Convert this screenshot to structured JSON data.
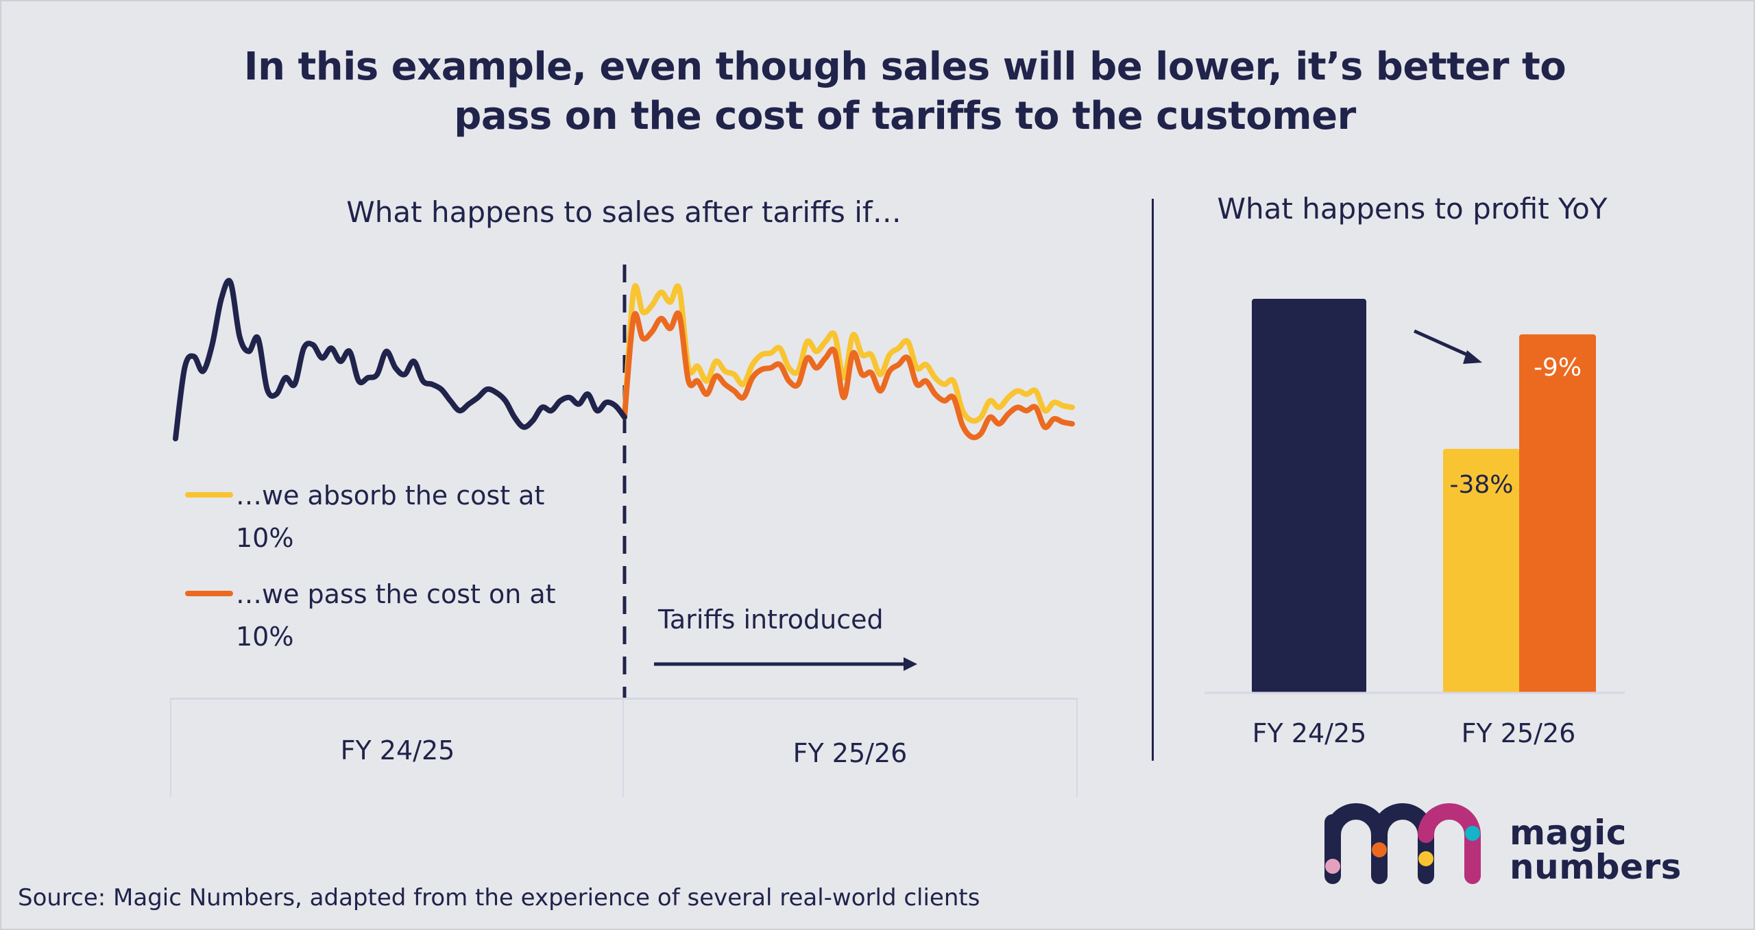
{
  "slide": {
    "title": "In this example, even though sales will be lower, it’s better to pass on the cost of tariffs to the customer",
    "source": "Source: Magic Numbers, adapted from the experience of several real-world clients",
    "logo": {
      "line1": "magic",
      "line2": "numbers",
      "icon": "mn-logo-icon"
    }
  },
  "colors": {
    "navy": "#20234a",
    "yellow": "#f8c431",
    "orange": "#eb6a1f",
    "magenta": "#b8307a",
    "teal": "#12b5c9",
    "pink": "#e3a1bd",
    "background": "#e6e7eb",
    "gridline": "#d6d6e6"
  },
  "chart_data": [
    {
      "type": "line",
      "title": "What happens to sales after tariffs if…",
      "xlabel": "",
      "ylabel": "",
      "grid": false,
      "legend_position": "bottom-left",
      "y_units": "relative sales index (illustrative, no axis shown)",
      "ylim": [
        0,
        100
      ],
      "annotation": {
        "text": "Tariffs introduced",
        "marker": "dashed vertical line at start of FY 25/26",
        "arrow": "right"
      },
      "periods": [
        "FY 24/25",
        "FY 25/26"
      ],
      "series": [
        {
          "name": "Sales FY 24/25",
          "color": "#20234a",
          "period": "FY 24/25",
          "values": [
            5,
            48,
            55,
            46,
            62,
            90,
            100,
            67,
            58,
            66,
            35,
            32,
            42,
            38,
            60,
            62,
            54,
            60,
            52,
            58,
            40,
            42,
            44,
            58,
            48,
            44,
            52,
            40,
            38,
            35,
            28,
            22,
            26,
            30,
            35,
            33,
            28,
            18,
            12,
            16,
            24,
            22,
            28,
            30,
            26,
            32,
            22,
            27,
            25,
            18
          ]
        },
        {
          "name": "…we absorb the cost at 10%",
          "color": "#f8c431",
          "period": "FY 25/26",
          "values": [
            18,
            95,
            82,
            86,
            94,
            88,
            96,
            48,
            49,
            40,
            52,
            46,
            44,
            38,
            50,
            56,
            57,
            60,
            48,
            46,
            64,
            58,
            64,
            68,
            42,
            68,
            56,
            56,
            44,
            56,
            60,
            64,
            48,
            50,
            42,
            38,
            40,
            22,
            16,
            18,
            28,
            24,
            30,
            34,
            32,
            34,
            22,
            27,
            25,
            24
          ]
        },
        {
          "name": "…we pass the cost on at 10%",
          "color": "#eb6a1f",
          "period": "FY 25/26",
          "values": [
            18,
            79,
            66,
            70,
            78,
            72,
            80,
            40,
            40,
            32,
            43,
            38,
            34,
            30,
            42,
            47,
            48,
            50,
            40,
            38,
            54,
            48,
            54,
            58,
            30,
            57,
            44,
            45,
            34,
            46,
            50,
            54,
            38,
            40,
            32,
            28,
            30,
            13,
            6,
            8,
            18,
            14,
            20,
            24,
            22,
            24,
            12,
            17,
            15,
            14
          ]
        }
      ]
    },
    {
      "type": "bar",
      "title": "What happens to profit YoY",
      "categories": [
        "FY 24/25",
        "FY 25/26"
      ],
      "xlabel": "",
      "ylabel": "",
      "grid": false,
      "y_units": "profit index (FY 24/25 = 100)",
      "ylim": [
        0,
        100
      ],
      "series": [
        {
          "name": "Baseline",
          "category": "FY 24/25",
          "value": 100,
          "color": "#20234a",
          "label": ""
        },
        {
          "name": "…we absorb the cost at 10%",
          "category": "FY 25/26",
          "value": 62,
          "color": "#f8c431",
          "label": "-38%"
        },
        {
          "name": "…we pass the cost on at 10%",
          "category": "FY 25/26",
          "value": 91,
          "color": "#eb6a1f",
          "label": "-9%"
        }
      ]
    }
  ]
}
